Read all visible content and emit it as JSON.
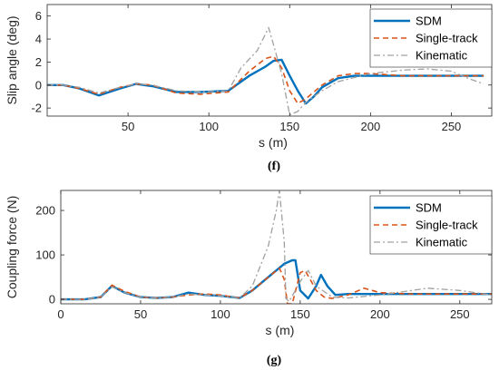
{
  "figure_labels": {
    "top": "(f)",
    "bottom": "(g)"
  },
  "colors": {
    "SDM": "#0072bd",
    "Single-track": "#d95319",
    "Kinematic": "#a0a0a0",
    "axis": "#262626"
  },
  "chart_data": [
    {
      "type": "line",
      "panel_label": "(f)",
      "xlabel": "s (m)",
      "ylabel": "Slip angle (deg)",
      "xlim": [
        0,
        275
      ],
      "ylim": [
        -2.7,
        7
      ],
      "xticks": [
        50,
        100,
        150,
        200,
        250
      ],
      "yticks": [
        -2,
        0,
        2,
        4,
        6
      ],
      "legend_position": "top-right",
      "series": [
        {
          "name": "SDM",
          "style": "solid",
          "x": [
            0,
            10,
            20,
            32,
            45,
            55,
            65,
            80,
            95,
            112,
            125,
            135,
            140,
            145,
            150,
            155,
            160,
            165,
            170,
            180,
            190,
            200,
            220,
            250,
            270
          ],
          "y": [
            0,
            0,
            -0.3,
            -0.9,
            -0.3,
            0.1,
            -0.1,
            -0.6,
            -0.6,
            -0.5,
            0.8,
            1.6,
            2.1,
            2.2,
            0.8,
            -0.5,
            -1.6,
            -1.0,
            -0.2,
            0.6,
            0.8,
            0.8,
            0.8,
            0.8,
            0.8
          ]
        },
        {
          "name": "Single-track",
          "style": "dashed",
          "x": [
            0,
            10,
            20,
            32,
            45,
            55,
            65,
            80,
            95,
            112,
            125,
            135,
            140,
            145,
            150,
            155,
            160,
            170,
            180,
            190,
            200,
            220,
            250,
            270
          ],
          "y": [
            0,
            0,
            -0.3,
            -0.8,
            -0.2,
            0.1,
            0,
            -0.7,
            -0.8,
            -0.6,
            1.2,
            2.3,
            2.5,
            1.5,
            -0.5,
            -1.6,
            -1.2,
            0,
            0.8,
            1.0,
            1.0,
            0.8,
            0.8,
            0.8
          ]
        },
        {
          "name": "Kinematic",
          "style": "dashdot",
          "x": [
            0,
            10,
            20,
            32,
            45,
            55,
            65,
            80,
            95,
            112,
            120,
            130,
            137,
            140,
            145,
            150,
            155,
            160,
            170,
            180,
            200,
            220,
            235,
            250,
            260,
            270
          ],
          "y": [
            0,
            0,
            -0.2,
            -0.7,
            -0.2,
            0.1,
            0,
            -0.5,
            -0.6,
            -0.5,
            1.5,
            3.0,
            5.0,
            3.5,
            1.0,
            -2.6,
            -2.3,
            -1.5,
            -0.5,
            0.3,
            1.0,
            1.3,
            1.4,
            1.2,
            0.6,
            0.1
          ]
        }
      ]
    },
    {
      "type": "line",
      "panel_label": "(g)",
      "xlabel": "s (m)",
      "ylabel": "Coupling force (N)",
      "xlim": [
        0,
        270
      ],
      "ylim": [
        -10,
        245
      ],
      "xticks": [
        0,
        50,
        100,
        150,
        200,
        250
      ],
      "yticks": [
        0,
        100,
        200
      ],
      "legend_position": "top-right",
      "series": [
        {
          "name": "SDM",
          "style": "solid",
          "x": [
            0,
            15,
            25,
            32,
            40,
            50,
            60,
            70,
            80,
            90,
            100,
            112,
            120,
            130,
            140,
            145,
            147,
            150,
            155,
            160,
            163,
            167,
            172,
            180,
            190,
            200,
            220,
            250,
            270
          ],
          "y": [
            0,
            0,
            5,
            30,
            15,
            5,
            3,
            5,
            15,
            10,
            8,
            3,
            20,
            50,
            80,
            88,
            88,
            20,
            2,
            30,
            55,
            30,
            10,
            12,
            12,
            12,
            12,
            12,
            12
          ]
        },
        {
          "name": "Single-track",
          "style": "dashed",
          "x": [
            0,
            15,
            25,
            32,
            40,
            50,
            60,
            70,
            80,
            90,
            100,
            112,
            120,
            130,
            137,
            140,
            142,
            145,
            150,
            153,
            157,
            160,
            165,
            170,
            180,
            190,
            200,
            220,
            250,
            270
          ],
          "y": [
            0,
            0,
            5,
            32,
            18,
            5,
            3,
            5,
            10,
            12,
            10,
            3,
            20,
            50,
            70,
            45,
            -10,
            -10,
            60,
            65,
            40,
            20,
            5,
            2,
            10,
            25,
            15,
            12,
            12,
            12
          ]
        },
        {
          "name": "Kinematic",
          "style": "dashdot",
          "x": [
            0,
            15,
            25,
            32,
            40,
            50,
            60,
            70,
            80,
            90,
            100,
            112,
            120,
            130,
            135,
            137,
            140,
            141,
            143,
            150,
            155,
            160,
            170,
            180,
            200,
            230,
            250,
            270
          ],
          "y": [
            0,
            0,
            5,
            28,
            15,
            5,
            3,
            5,
            12,
            10,
            8,
            3,
            30,
            120,
            200,
            245,
            130,
            2,
            -5,
            40,
            65,
            30,
            5,
            3,
            10,
            25,
            20,
            10
          ]
        }
      ]
    }
  ]
}
